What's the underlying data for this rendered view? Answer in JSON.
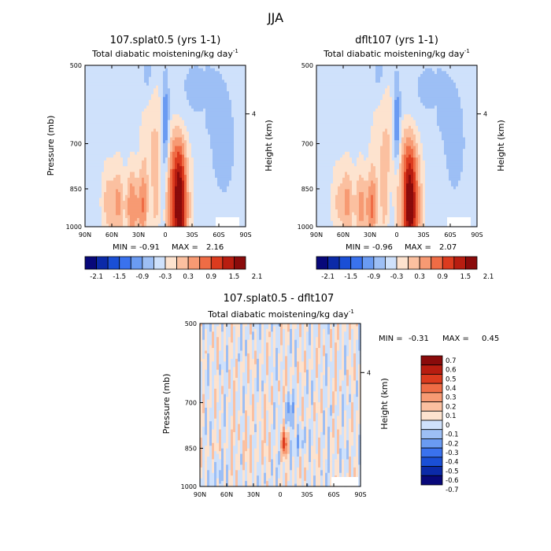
{
  "figure": {
    "title": "JJA"
  },
  "chart_data": [
    {
      "type": "heatmap",
      "title": "107.splat0.5 (yrs 1-1)",
      "subtitle": "Total diabatic moistening/kg day",
      "subtitle_sup": "-1",
      "xlabel": "",
      "ylabel": "Pressure (mb)",
      "y2label": "Height (km)",
      "xticks": [
        "90N",
        "60N",
        "30N",
        "0",
        "30S",
        "60S",
        "90S"
      ],
      "yticks": [
        "500",
        "700",
        "850",
        "1000"
      ],
      "y2ticks": [
        "4"
      ],
      "ylim": [
        1000,
        500
      ],
      "xlim": [
        "90N",
        "90S"
      ],
      "stats": {
        "min_label": "MIN =",
        "min": "-0.91",
        "max_label": "MAX =",
        "max": "2.16"
      },
      "colorbar": {
        "orientation": "horizontal",
        "labels": [
          "-2.1",
          "-1.5",
          "-0.9",
          "-0.3",
          "0.3",
          "0.9",
          "1.5",
          "2.1"
        ],
        "levels": [
          -2.1,
          -1.8,
          -1.5,
          -1.2,
          -0.9,
          -0.6,
          -0.3,
          0,
          0.3,
          0.6,
          0.9,
          1.2,
          1.5,
          1.8,
          2.1
        ]
      }
    },
    {
      "type": "heatmap",
      "title": "dflt107 (yrs 1-1)",
      "subtitle": "Total diabatic moistening/kg day",
      "subtitle_sup": "-1",
      "xlabel": "",
      "ylabel": "Pressure (mb)",
      "y2label": "Height (km)",
      "xticks": [
        "90N",
        "60N",
        "30N",
        "0",
        "30S",
        "60S",
        "90S"
      ],
      "yticks": [
        "500",
        "700",
        "850",
        "1000"
      ],
      "y2ticks": [
        "4"
      ],
      "ylim": [
        1000,
        500
      ],
      "xlim": [
        "90N",
        "90S"
      ],
      "stats": {
        "min_label": "MIN =",
        "min": "-0.96",
        "max_label": "MAX =",
        "max": "2.07"
      },
      "colorbar": {
        "orientation": "horizontal",
        "labels": [
          "-2.1",
          "-1.5",
          "-0.9",
          "-0.3",
          "0.3",
          "0.9",
          "1.5",
          "2.1"
        ],
        "levels": [
          -2.1,
          -1.8,
          -1.5,
          -1.2,
          -0.9,
          -0.6,
          -0.3,
          0,
          0.3,
          0.6,
          0.9,
          1.2,
          1.5,
          1.8,
          2.1
        ]
      }
    },
    {
      "type": "heatmap",
      "title": "107.splat0.5 - dflt107",
      "subtitle": "Total diabatic moistening/kg day",
      "subtitle_sup": "-1",
      "xlabel": "",
      "ylabel": "Pressure (mb)",
      "y2label": "Height (km)",
      "xticks": [
        "90N",
        "60N",
        "30N",
        "0",
        "30S",
        "60S",
        "90S"
      ],
      "yticks": [
        "500",
        "700",
        "850",
        "1000"
      ],
      "y2ticks": [
        "4"
      ],
      "ylim": [
        1000,
        500
      ],
      "xlim": [
        "90N",
        "90S"
      ],
      "stats": {
        "min_label": "MIN =",
        "min": "-0.31",
        "max_label": "MAX =",
        "max": "0.45"
      },
      "colorbar": {
        "orientation": "vertical",
        "labels": [
          "0.7",
          "0.6",
          "0.5",
          "0.4",
          "0.3",
          "0.2",
          "0.1",
          "0",
          "-0.1",
          "-0.2",
          "-0.3",
          "-0.4",
          "-0.5",
          "-0.6",
          "-0.7"
        ],
        "levels": [
          0.7,
          0.6,
          0.5,
          0.4,
          0.3,
          0.2,
          0.1,
          0,
          -0.1,
          -0.2,
          -0.3,
          -0.4,
          -0.5,
          -0.6,
          -0.7
        ]
      }
    }
  ],
  "colors": {
    "cold": [
      "#08087a",
      "#0b2aa8",
      "#1a4fd6",
      "#3a72ee",
      "#6a9bf2",
      "#9dbff5",
      "#cfe1fb"
    ],
    "warm": [
      "#fde3cf",
      "#fbc0a0",
      "#f79a73",
      "#ef6c45",
      "#dc3b1e",
      "#b81d10",
      "#8a0b0b"
    ]
  }
}
